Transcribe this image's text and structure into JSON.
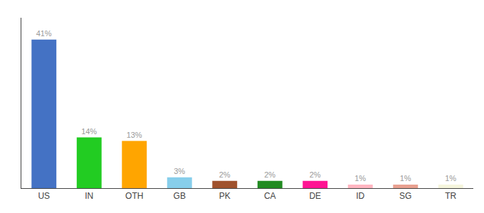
{
  "chart_data": {
    "type": "bar",
    "categories": [
      "US",
      "IN",
      "OTH",
      "GB",
      "PK",
      "CA",
      "DE",
      "ID",
      "SG",
      "TR"
    ],
    "values": [
      41,
      14,
      13,
      3,
      2,
      2,
      2,
      1,
      1,
      1
    ],
    "value_labels": [
      "41%",
      "14%",
      "13%",
      "3%",
      "2%",
      "2%",
      "2%",
      "1%",
      "1%",
      "1%"
    ],
    "colors": [
      "#4472C4",
      "#22CC22",
      "#FFA500",
      "#87CEEB",
      "#A0522D",
      "#228B22",
      "#FF1493",
      "#FFB6C1",
      "#E8A090",
      "#F5F5DC"
    ],
    "ylim": [
      0,
      47
    ],
    "data_labels": true,
    "tick_labels": "x",
    "grid": false
  }
}
